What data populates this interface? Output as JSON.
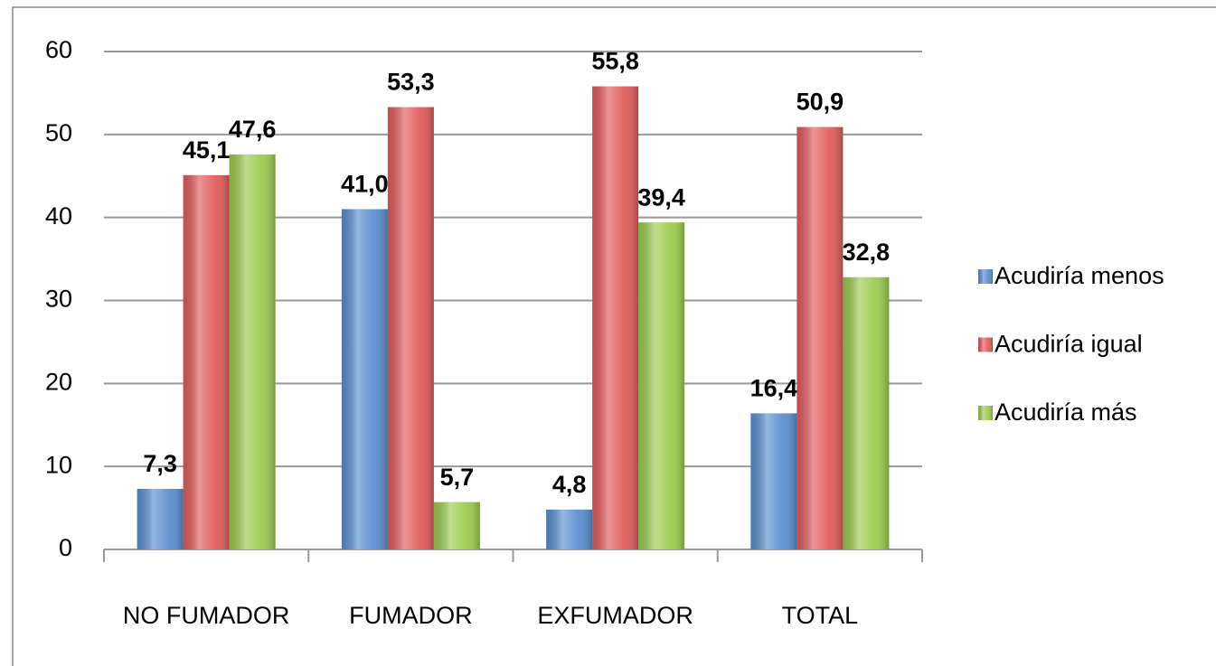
{
  "chart_data": {
    "type": "bar",
    "categories": [
      "NO FUMADOR",
      "FUMADOR",
      "EXFUMADOR",
      "TOTAL"
    ],
    "series": [
      {
        "name": "Acudiría menos",
        "color": "#5b8fd0",
        "values": [
          7.3,
          41.0,
          4.8,
          16.4
        ],
        "value_labels": [
          "7,3",
          "41,0",
          "4,8",
          "16,4"
        ]
      },
      {
        "name": "Acudiría igual",
        "color": "#e25c5c",
        "values": [
          45.1,
          53.3,
          55.8,
          50.9
        ],
        "value_labels": [
          "45,1",
          "53,3",
          "55,8",
          "50,9"
        ]
      },
      {
        "name": "Acudiría más",
        "color": "#9ccc4e",
        "values": [
          47.6,
          5.7,
          39.4,
          32.8
        ],
        "value_labels": [
          "47,6",
          "5,7",
          "39,4",
          "32,8"
        ]
      }
    ],
    "ylim": [
      0,
      60
    ],
    "yticks": [
      0,
      10,
      20,
      30,
      40,
      50,
      60
    ],
    "grid": true,
    "legend": "right"
  }
}
